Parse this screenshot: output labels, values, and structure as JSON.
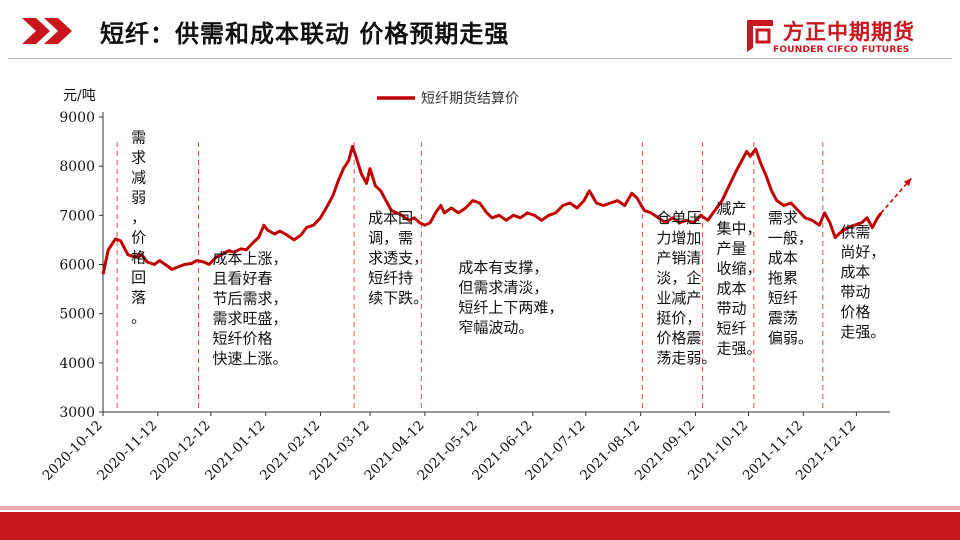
{
  "header": {
    "title": "短纤：供需和成本联动  价格预期走强",
    "logo_cn": "方正中期期货",
    "logo_en": "FOUNDER CIFCO FUTURES"
  },
  "colors": {
    "brand_red": "#c8161d",
    "series": "#c00000",
    "dash": "#e05050"
  },
  "chart_data": {
    "type": "line",
    "ylabel": "元/吨",
    "ylim": [
      3000,
      9000
    ],
    "yticks": [
      3000,
      4000,
      5000,
      6000,
      7000,
      8000,
      9000
    ],
    "xlim": [
      "2020-10-12",
      "2021-12-31"
    ],
    "xticks": [
      "2020-10-12",
      "2020-11-12",
      "2020-12-12",
      "2021-01-12",
      "2021-02-12",
      "2021-03-12",
      "2021-04-12",
      "2021-05-12",
      "2021-06-12",
      "2021-07-12",
      "2021-08-12",
      "2021-09-12",
      "2021-10-12",
      "2021-11-12",
      "2021-12-12"
    ],
    "legend": {
      "position": "top-center"
    },
    "grid": false,
    "series": [
      {
        "name": "短纤期货结算价",
        "points": [
          [
            "2020-10-12",
            5800
          ],
          [
            "2020-10-15",
            6300
          ],
          [
            "2020-10-19",
            6520
          ],
          [
            "2020-10-22",
            6480
          ],
          [
            "2020-10-26",
            6200
          ],
          [
            "2020-10-30",
            6150
          ],
          [
            "2020-11-03",
            6200
          ],
          [
            "2020-11-06",
            6050
          ],
          [
            "2020-11-10",
            6000
          ],
          [
            "2020-11-13",
            6080
          ],
          [
            "2020-11-17",
            5980
          ],
          [
            "2020-11-20",
            5900
          ],
          [
            "2020-11-24",
            5960
          ],
          [
            "2020-11-27",
            6000
          ],
          [
            "2020-12-01",
            6020
          ],
          [
            "2020-12-04",
            6080
          ],
          [
            "2020-12-08",
            6050
          ],
          [
            "2020-12-11",
            6000
          ],
          [
            "2020-12-15",
            6150
          ],
          [
            "2020-12-18",
            6200
          ],
          [
            "2020-12-22",
            6280
          ],
          [
            "2020-12-25",
            6250
          ],
          [
            "2020-12-29",
            6320
          ],
          [
            "2021-01-01",
            6300
          ],
          [
            "2021-01-05",
            6450
          ],
          [
            "2021-01-08",
            6550
          ],
          [
            "2021-01-11",
            6800
          ],
          [
            "2021-01-13",
            6700
          ],
          [
            "2021-01-17",
            6620
          ],
          [
            "2021-01-20",
            6680
          ],
          [
            "2021-01-24",
            6600
          ],
          [
            "2021-01-28",
            6500
          ],
          [
            "2021-02-01",
            6600
          ],
          [
            "2021-02-04",
            6750
          ],
          [
            "2021-02-08",
            6800
          ],
          [
            "2021-02-12",
            6950
          ],
          [
            "2021-02-16",
            7200
          ],
          [
            "2021-02-19",
            7400
          ],
          [
            "2021-02-22",
            7700
          ],
          [
            "2021-02-25",
            7950
          ],
          [
            "2021-02-28",
            8120
          ],
          [
            "2021-03-02",
            8400
          ],
          [
            "2021-03-04",
            8200
          ],
          [
            "2021-03-07",
            7850
          ],
          [
            "2021-03-10",
            7650
          ],
          [
            "2021-03-12",
            7950
          ],
          [
            "2021-03-15",
            7600
          ],
          [
            "2021-03-18",
            7500
          ],
          [
            "2021-03-21",
            7300
          ],
          [
            "2021-03-24",
            7100
          ],
          [
            "2021-03-27",
            7050
          ],
          [
            "2021-03-30",
            7000
          ],
          [
            "2021-04-03",
            6900
          ],
          [
            "2021-04-06",
            6950
          ],
          [
            "2021-04-09",
            6850
          ],
          [
            "2021-04-12",
            6800
          ],
          [
            "2021-04-15",
            6850
          ],
          [
            "2021-04-18",
            7050
          ],
          [
            "2021-04-21",
            7200
          ],
          [
            "2021-04-23",
            7050
          ],
          [
            "2021-04-27",
            7150
          ],
          [
            "2021-05-01",
            7050
          ],
          [
            "2021-05-05",
            7150
          ],
          [
            "2021-05-09",
            7300
          ],
          [
            "2021-05-13",
            7250
          ],
          [
            "2021-05-17",
            7050
          ],
          [
            "2021-05-20",
            6950
          ],
          [
            "2021-05-24",
            7000
          ],
          [
            "2021-05-28",
            6900
          ],
          [
            "2021-06-01",
            7000
          ],
          [
            "2021-06-05",
            6950
          ],
          [
            "2021-06-09",
            7050
          ],
          [
            "2021-06-13",
            7000
          ],
          [
            "2021-06-17",
            6900
          ],
          [
            "2021-06-21",
            7000
          ],
          [
            "2021-06-25",
            7050
          ],
          [
            "2021-06-29",
            7200
          ],
          [
            "2021-07-03",
            7250
          ],
          [
            "2021-07-07",
            7150
          ],
          [
            "2021-07-11",
            7300
          ],
          [
            "2021-07-14",
            7500
          ],
          [
            "2021-07-18",
            7250
          ],
          [
            "2021-07-22",
            7200
          ],
          [
            "2021-07-26",
            7250
          ],
          [
            "2021-07-30",
            7300
          ],
          [
            "2021-08-03",
            7200
          ],
          [
            "2021-08-07",
            7450
          ],
          [
            "2021-08-10",
            7350
          ],
          [
            "2021-08-14",
            7100
          ],
          [
            "2021-08-18",
            7050
          ],
          [
            "2021-08-22",
            6950
          ],
          [
            "2021-08-26",
            6850
          ],
          [
            "2021-08-30",
            6950
          ],
          [
            "2021-09-03",
            6850
          ],
          [
            "2021-09-07",
            6900
          ],
          [
            "2021-09-11",
            6850
          ],
          [
            "2021-09-15",
            7000
          ],
          [
            "2021-09-19",
            6900
          ],
          [
            "2021-09-23",
            7100
          ],
          [
            "2021-09-27",
            7300
          ],
          [
            "2021-10-01",
            7600
          ],
          [
            "2021-10-05",
            7900
          ],
          [
            "2021-10-08",
            8100
          ],
          [
            "2021-10-11",
            8300
          ],
          [
            "2021-10-13",
            8200
          ],
          [
            "2021-10-16",
            8350
          ],
          [
            "2021-10-19",
            8050
          ],
          [
            "2021-10-22",
            7800
          ],
          [
            "2021-10-25",
            7500
          ],
          [
            "2021-10-28",
            7300
          ],
          [
            "2021-11-01",
            7200
          ],
          [
            "2021-11-05",
            7250
          ],
          [
            "2021-11-09",
            7100
          ],
          [
            "2021-11-13",
            6950
          ],
          [
            "2021-11-17",
            6900
          ],
          [
            "2021-11-21",
            6800
          ],
          [
            "2021-11-24",
            7050
          ],
          [
            "2021-11-27",
            6850
          ],
          [
            "2021-11-30",
            6550
          ],
          [
            "2021-12-03",
            6650
          ],
          [
            "2021-12-07",
            6750
          ],
          [
            "2021-12-11",
            6800
          ],
          [
            "2021-12-15",
            6850
          ],
          [
            "2021-12-18",
            6950
          ],
          [
            "2021-12-21",
            6750
          ],
          [
            "2021-12-24",
            6950
          ],
          [
            "2021-12-26",
            7050
          ]
        ]
      }
    ],
    "trend_arrow": {
      "from": [
        "2021-12-26",
        7050
      ],
      "to": [
        "2022-01-12",
        7750
      ]
    },
    "dividers": [
      "2020-10-20",
      "2020-12-05",
      "2021-03-03",
      "2021-04-10",
      "2021-08-13",
      "2021-09-16",
      "2021-10-15",
      "2021-11-23"
    ],
    "annotations": [
      {
        "anchor": "2020-10-20",
        "y_top": 8480,
        "lines": [
          "需",
          "求",
          "减",
          "弱",
          "，",
          "价",
          "格",
          "回",
          "落",
          "。"
        ]
      },
      {
        "anchor": "2020-12-05",
        "y_top": 6020,
        "lines": [
          "成本上涨，",
          "且看好春",
          "节后需求，",
          "需求旺盛，",
          "短纤价格",
          "快速上涨。"
        ]
      },
      {
        "anchor": "2021-03-03",
        "y_top": 6840,
        "lines": [
          "成本回",
          "调，需",
          "求透支，",
          "短纤持",
          "续下跌。"
        ]
      },
      {
        "anchor": "2021-04-23",
        "y_top": 5840,
        "lines": [
          "成本有支撑，",
          "但需求清淡，",
          "短纤上下两难，",
          "窄幅波动。"
        ]
      },
      {
        "anchor": "2021-08-13",
        "y_top": 6840,
        "lines": [
          "仓单压",
          "力增加",
          "产销清",
          "淡，企",
          "业减产",
          "挺价，",
          "价格震",
          "荡走弱。"
        ]
      },
      {
        "anchor": "2021-09-16",
        "y_top": 7040,
        "lines": [
          "减产",
          "集中，",
          "产量",
          "收缩，",
          "成本",
          "带动",
          "短纤",
          "走强。"
        ]
      },
      {
        "anchor": "2021-10-15",
        "y_top": 6840,
        "lines": [
          "需求",
          "一般，",
          "成本",
          "拖累",
          "短纤",
          "震荡",
          "偏弱。"
        ]
      },
      {
        "anchor": "2021-11-25",
        "y_top": 6560,
        "lines": [
          "供需",
          "尚好，",
          "成本",
          "带动",
          "价格",
          "走强。"
        ]
      }
    ]
  }
}
